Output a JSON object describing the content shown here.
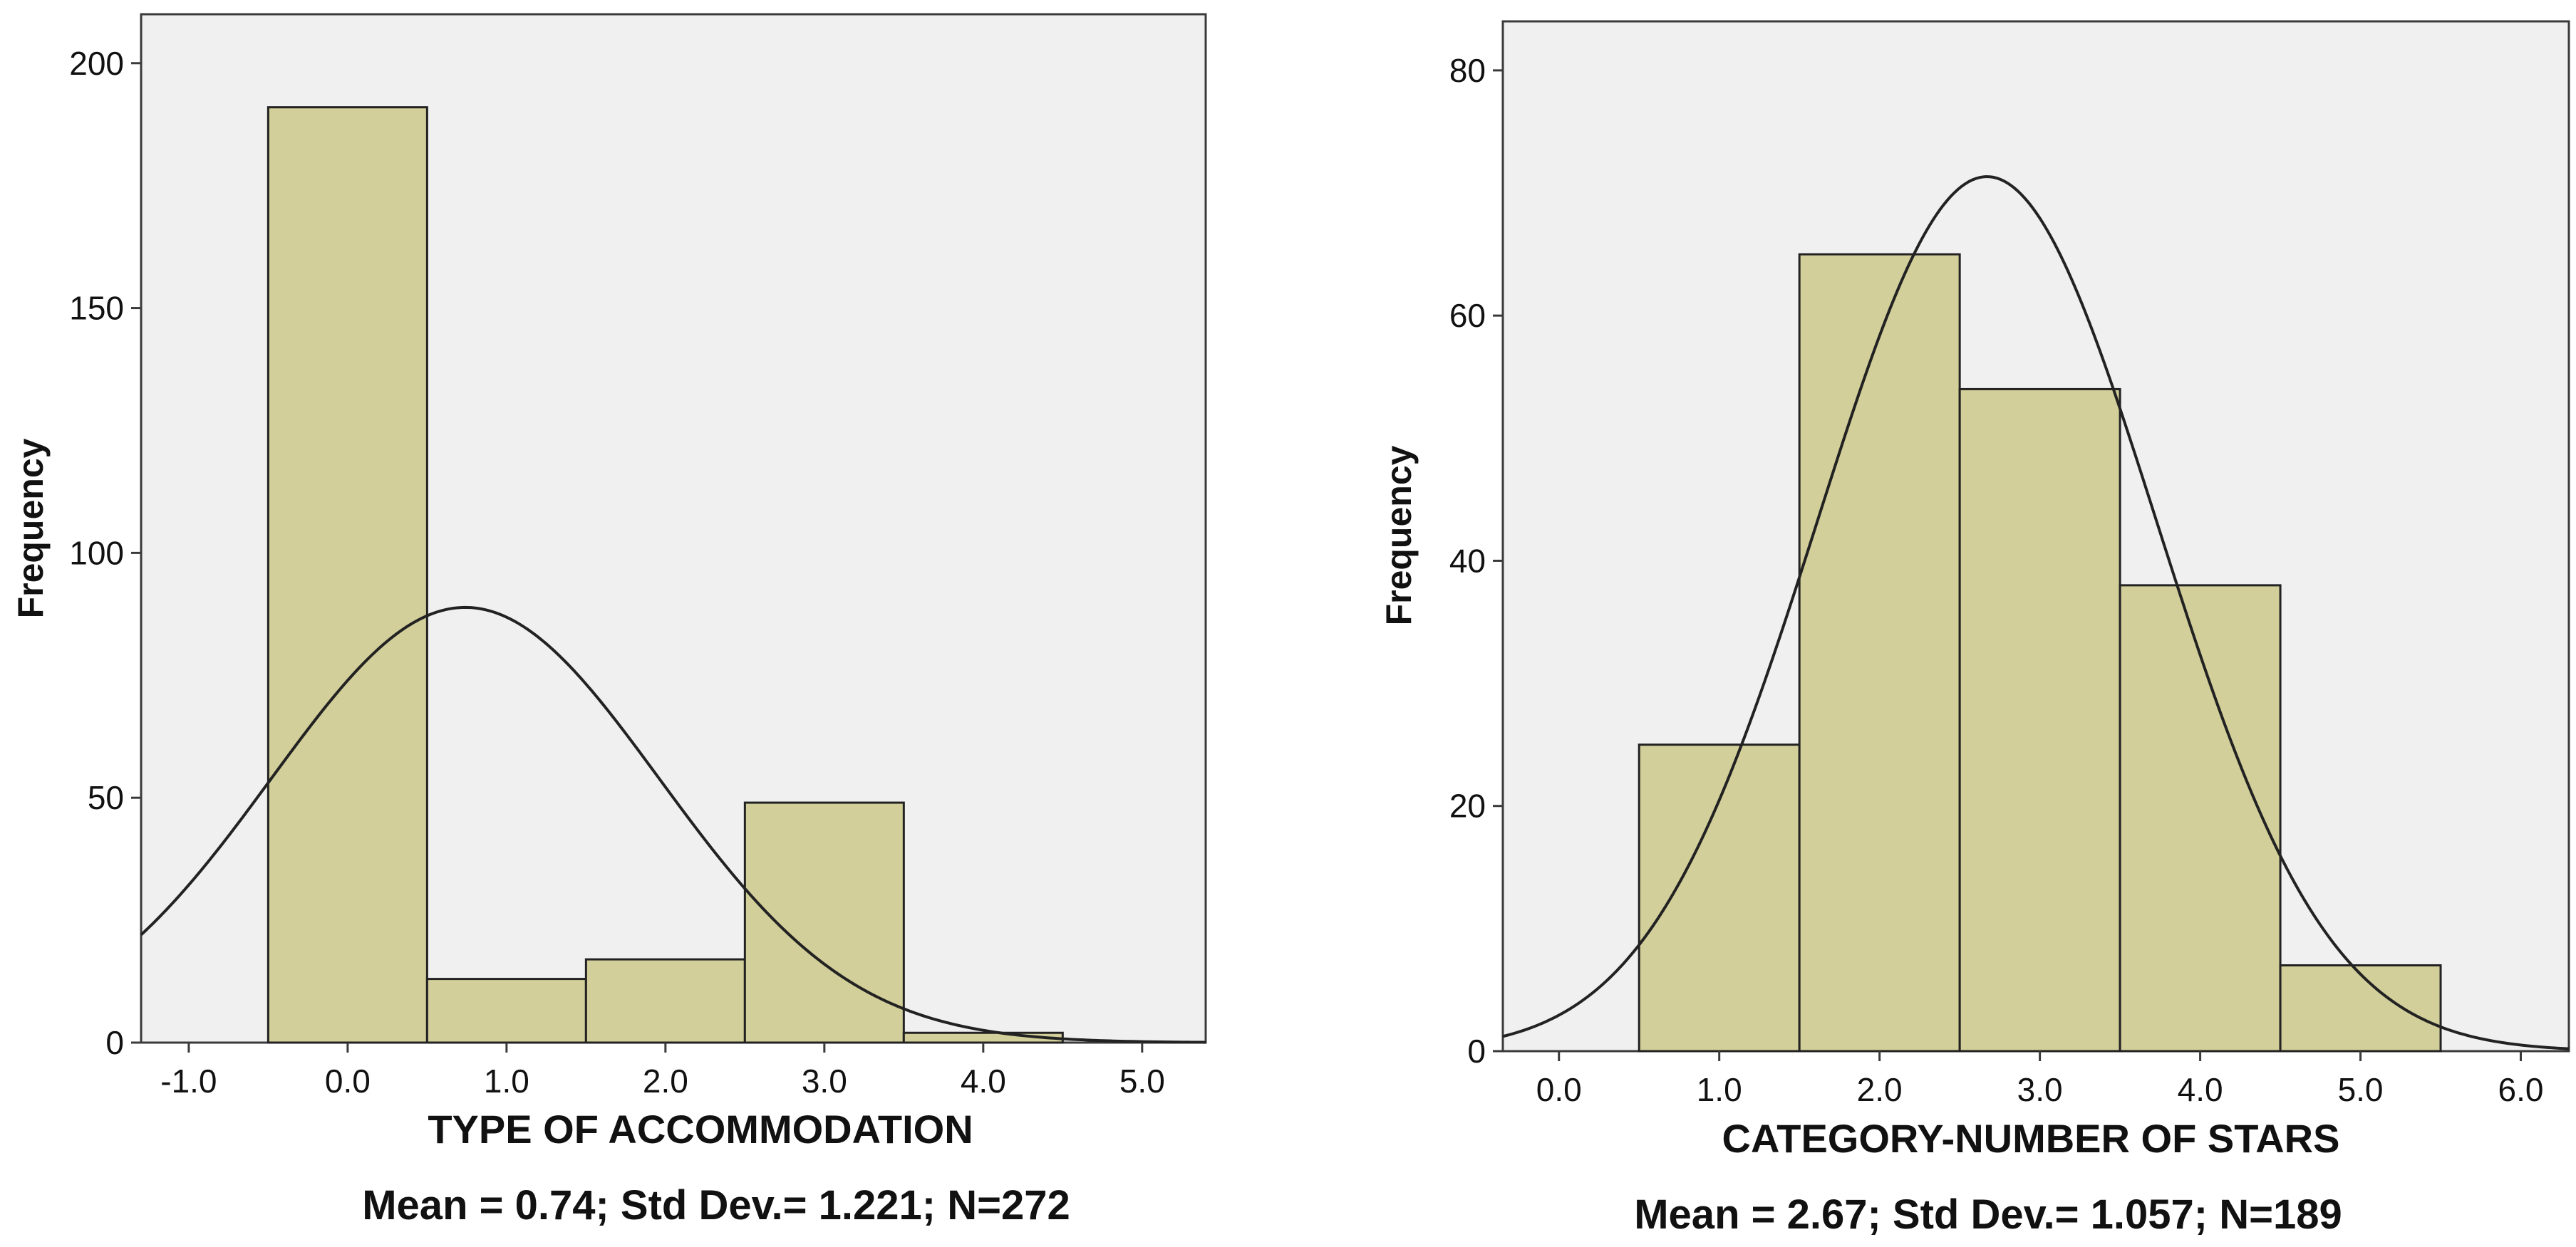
{
  "chart_data": [
    {
      "type": "bar",
      "subtype": "histogram",
      "xlabel": "TYPE OF ACCOMMODATION",
      "ylabel": "Frequency",
      "stats_label": "Mean = 0.74; Std Dev.= 1.221; N=272",
      "mean": 0.74,
      "std": 1.221,
      "n": 272,
      "bin_width": 1,
      "bins": [
        {
          "center": 0,
          "value": 191
        },
        {
          "center": 1,
          "value": 13
        },
        {
          "center": 2,
          "value": 17
        },
        {
          "center": 3,
          "value": 49
        },
        {
          "center": 4,
          "value": 2
        }
      ],
      "xlim": [
        -1.3,
        5.4
      ],
      "ylim": [
        0,
        210
      ],
      "xticks": [
        -1,
        0,
        1,
        2,
        3,
        4,
        5
      ],
      "xtick_labels": [
        "-1.0",
        "0.0",
        "1.0",
        "2.0",
        "3.0",
        "4.0",
        "5.0"
      ],
      "yticks": [
        0,
        50,
        100,
        150,
        200
      ],
      "ytick_labels": [
        "0",
        "50",
        "100",
        "150",
        "200"
      ],
      "normal_curve": true
    },
    {
      "type": "bar",
      "subtype": "histogram",
      "xlabel": "CATEGORY-NUMBER OF STARS",
      "ylabel": "Frequency",
      "stats_label": "Mean = 2.67; Std Dev.= 1.057; N=189",
      "mean": 2.67,
      "std": 1.057,
      "n": 189,
      "bin_width": 1,
      "bins": [
        {
          "center": 1,
          "value": 25
        },
        {
          "center": 2,
          "value": 65
        },
        {
          "center": 3,
          "value": 54
        },
        {
          "center": 4,
          "value": 38
        },
        {
          "center": 5,
          "value": 7
        }
      ],
      "xlim": [
        -0.35,
        6.3
      ],
      "ylim": [
        0,
        84
      ],
      "xticks": [
        0,
        1,
        2,
        3,
        4,
        5,
        6
      ],
      "xtick_labels": [
        "0.0",
        "1.0",
        "2.0",
        "3.0",
        "4.0",
        "5.0",
        "6.0"
      ],
      "yticks": [
        0,
        20,
        40,
        60,
        80
      ],
      "ytick_labels": [
        "0",
        "20",
        "40",
        "60",
        "80"
      ],
      "normal_curve": true
    }
  ]
}
